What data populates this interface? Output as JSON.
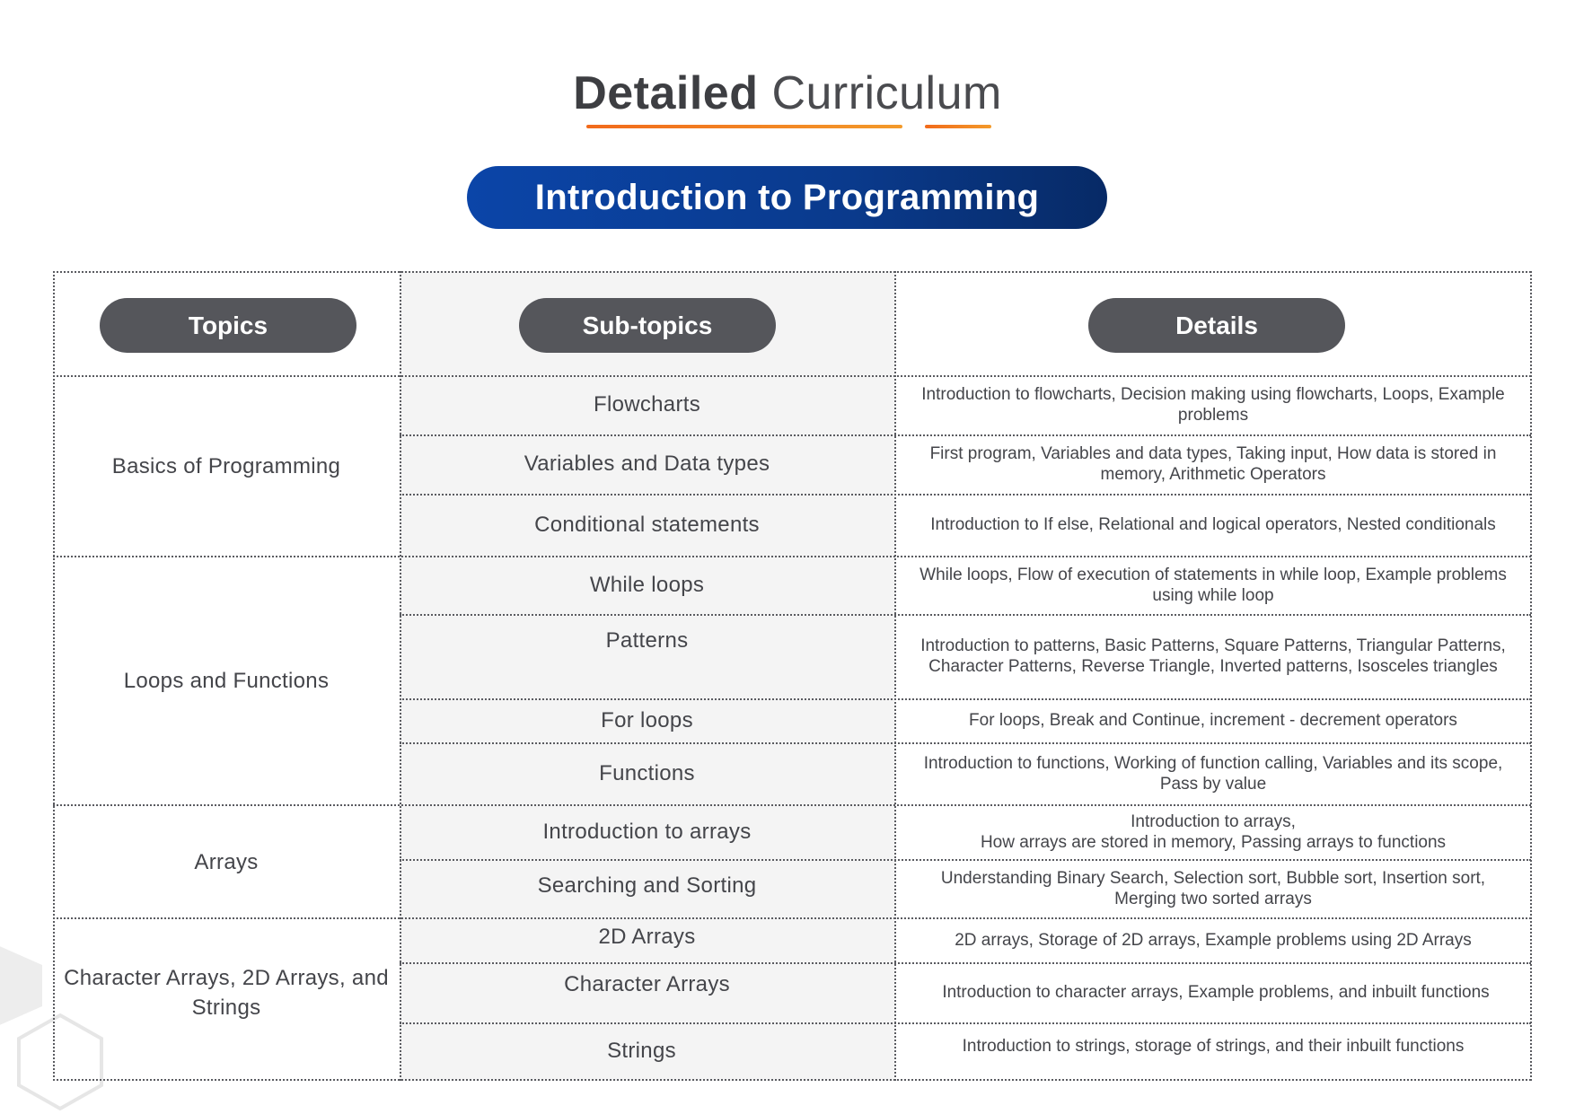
{
  "header": {
    "title_bold": "Detailed",
    "title_light": "Curriculum"
  },
  "banner": {
    "label": "Introduction to Programming"
  },
  "table": {
    "headers": {
      "topics": "Topics",
      "subtopics": "Sub-topics",
      "details": "Details"
    },
    "topics": [
      "Basics of Programming",
      "Loops and Functions",
      "Arrays",
      "Character Arrays, 2D Arrays, and Strings"
    ],
    "rows": [
      {
        "subtopic": "Flowcharts",
        "details": "Introduction to flowcharts, Decision making using flowcharts, Loops, Example problems"
      },
      {
        "subtopic": "Variables and Data types",
        "details": "First program, Variables and data types, Taking input, How data is stored in memory, Arithmetic Operators"
      },
      {
        "subtopic": "Conditional statements",
        "details": "Introduction to If else, Relational and logical operators, Nested conditionals"
      },
      {
        "subtopic": "While loops",
        "details": "While loops, Flow of execution of statements in while loop, Example problems using while loop"
      },
      {
        "subtopic": "Patterns",
        "details": "Introduction to patterns, Basic Patterns, Square Patterns, Triangular Patterns, Character Patterns, Reverse Triangle, Inverted patterns, Isosceles triangles"
      },
      {
        "subtopic": "For loops",
        "details": "For loops, Break and Continue, increment - decrement operators"
      },
      {
        "subtopic": "Functions",
        "details": "Introduction to functions, Working of function calling, Variables and its scope, Pass by value"
      },
      {
        "subtopic": "Introduction to arrays",
        "details": "Introduction to arrays,\nHow arrays are stored in memory, Passing arrays to functions"
      },
      {
        "subtopic": "Searching and Sorting",
        "details": "Understanding Binary Search, Selection sort, Bubble sort, Insertion sort, Merging two sorted arrays"
      },
      {
        "subtopic": "2D Arrays",
        "details": "2D arrays, Storage of 2D arrays, Example problems using 2D Arrays"
      },
      {
        "subtopic": "Character Arrays",
        "details": "Introduction to character arrays, Example problems, and inbuilt functions"
      },
      {
        "subtopic": "Strings",
        "details": "Introduction to strings, storage of strings, and their inbuilt functions"
      }
    ]
  },
  "colors": {
    "accent_orange": "#f26a1b",
    "banner_blue": "#0a3a8c",
    "pill_gray": "#55565b",
    "shade_gray": "#f4f4f4"
  }
}
